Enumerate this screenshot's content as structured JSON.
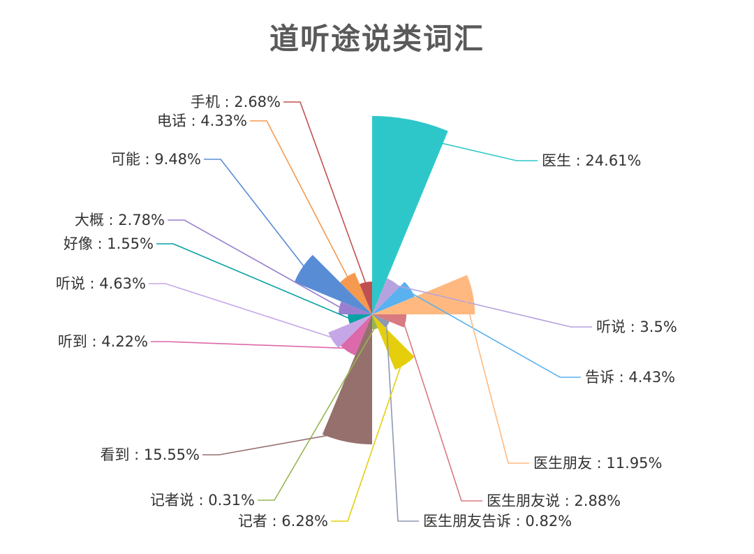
{
  "chart_data": {
    "type": "pie",
    "variant": "rose",
    "title": "道听途说类词汇",
    "label_separator": " : ",
    "slices": [
      {
        "label": "医生",
        "value": 24.61,
        "percent_text": "24.61%",
        "color": "#2ec7c9"
      },
      {
        "label": "听说",
        "value": 3.5,
        "percent_text": "3.5%",
        "color": "#b6a2de"
      },
      {
        "label": "告诉",
        "value": 4.43,
        "percent_text": "4.43%",
        "color": "#5ab1ef"
      },
      {
        "label": "医生朋友",
        "value": 11.95,
        "percent_text": "11.95%",
        "color": "#ffb980"
      },
      {
        "label": "医生朋友说",
        "value": 2.88,
        "percent_text": "2.88%",
        "color": "#d87a80"
      },
      {
        "label": "医生朋友告诉",
        "value": 0.82,
        "percent_text": "0.82%",
        "color": "#8d98b3"
      },
      {
        "label": "记者",
        "value": 6.28,
        "percent_text": "6.28%",
        "color": "#e5cf0d"
      },
      {
        "label": "记者说",
        "value": 0.31,
        "percent_text": "0.31%",
        "color": "#97b552"
      },
      {
        "label": "看到",
        "value": 15.55,
        "percent_text": "15.55%",
        "color": "#95706d"
      },
      {
        "label": "听到",
        "value": 4.22,
        "percent_text": "4.22%",
        "color": "#dc69aa"
      },
      {
        "label": "听说",
        "value": 4.63,
        "percent_text": "4.63%",
        "color": "#c5a7e8"
      },
      {
        "label": "好像",
        "value": 1.55,
        "percent_text": "1.55%",
        "color": "#07a2a4"
      },
      {
        "label": "大概",
        "value": 2.78,
        "percent_text": "2.78%",
        "color": "#9a7fd1"
      },
      {
        "label": "可能",
        "value": 9.48,
        "percent_text": "9.48%",
        "color": "#588dd5"
      },
      {
        "label": "电话",
        "value": 4.33,
        "percent_text": "4.33%",
        "color": "#f5994e"
      },
      {
        "label": "手机",
        "value": 2.68,
        "percent_text": "2.68%",
        "color": "#c05050"
      }
    ]
  }
}
